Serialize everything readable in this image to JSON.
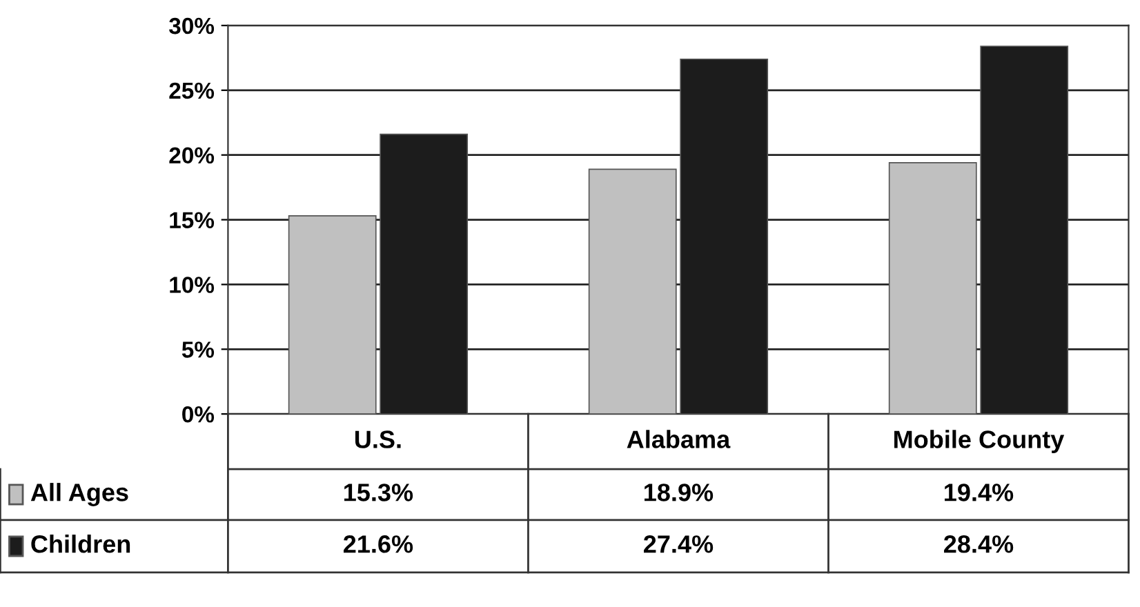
{
  "chart_data": {
    "type": "bar",
    "categories": [
      "U.S.",
      "Alabama",
      "Mobile County"
    ],
    "series": [
      {
        "name": "All Ages",
        "color": "#c0c0c0",
        "values": [
          15.3,
          18.9,
          19.4
        ],
        "value_labels": [
          "15.3%",
          "18.9%",
          "19.4%"
        ]
      },
      {
        "name": "Children",
        "color": "#1c1c1c",
        "values": [
          21.6,
          27.4,
          28.4
        ],
        "value_labels": [
          "21.6%",
          "27.4%",
          "28.4%"
        ]
      }
    ],
    "ylim": [
      0,
      30
    ],
    "yticks": [
      {
        "value": 0,
        "label": "0%"
      },
      {
        "value": 5,
        "label": "5%"
      },
      {
        "value": 10,
        "label": "10%"
      },
      {
        "value": 15,
        "label": "15%"
      },
      {
        "value": 20,
        "label": "20%"
      },
      {
        "value": 25,
        "label": "25%"
      },
      {
        "value": 30,
        "label": "30%"
      }
    ],
    "grid": "y",
    "legend": "bottom left"
  }
}
